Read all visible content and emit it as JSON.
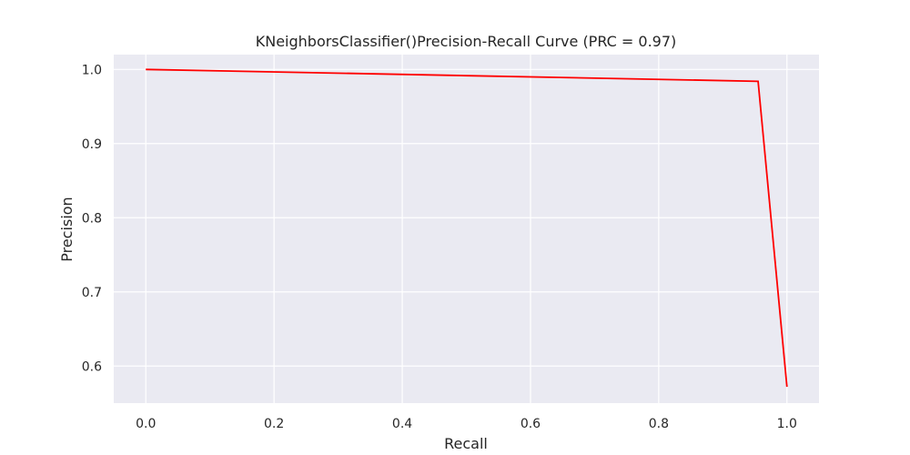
{
  "chart_data": {
    "type": "line",
    "title": "KNeighborsClassifier()Precision-Recall Curve (PRC = 0.97)",
    "xlabel": "Recall",
    "ylabel": "Precision",
    "xlim": [
      -0.05,
      1.05
    ],
    "ylim": [
      0.55,
      1.02
    ],
    "xticks": [
      0.0,
      0.2,
      0.4,
      0.6,
      0.8,
      1.0
    ],
    "xtick_labels": [
      "0.0",
      "0.2",
      "0.4",
      "0.6",
      "0.8",
      "1.0"
    ],
    "yticks": [
      0.6,
      0.7,
      0.8,
      0.9,
      1.0
    ],
    "ytick_labels": [
      "0.6",
      "0.7",
      "0.8",
      "0.9",
      "1.0"
    ],
    "grid": true,
    "legend": "none",
    "series": [
      {
        "color": "#ff0000",
        "x": [
          0.0,
          0.955,
          1.0
        ],
        "y": [
          1.0,
          0.984,
          0.572
        ]
      }
    ]
  },
  "colors": {
    "plot_background": "#eaeaf2",
    "grid": "#ffffff",
    "text": "#262626"
  }
}
